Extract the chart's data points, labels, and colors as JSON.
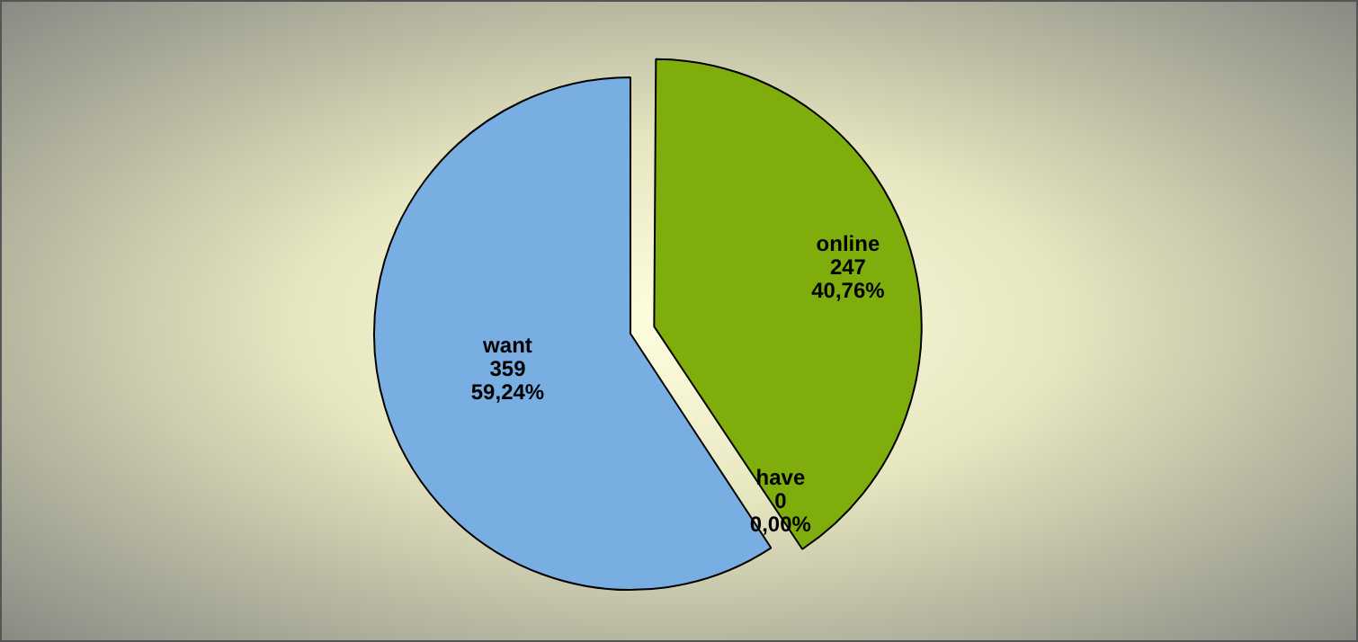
{
  "chart_data": {
    "type": "pie",
    "categories": [
      "online",
      "have",
      "want"
    ],
    "values": [
      40.76,
      0,
      59.24
    ],
    "colors": [
      "#7fae0c",
      "#ffffff",
      "#79aee2"
    ],
    "value_labels": [
      "247\n40,76%",
      "0\n0,00%",
      "359\n59,24%"
    ],
    "legend": false
  }
}
